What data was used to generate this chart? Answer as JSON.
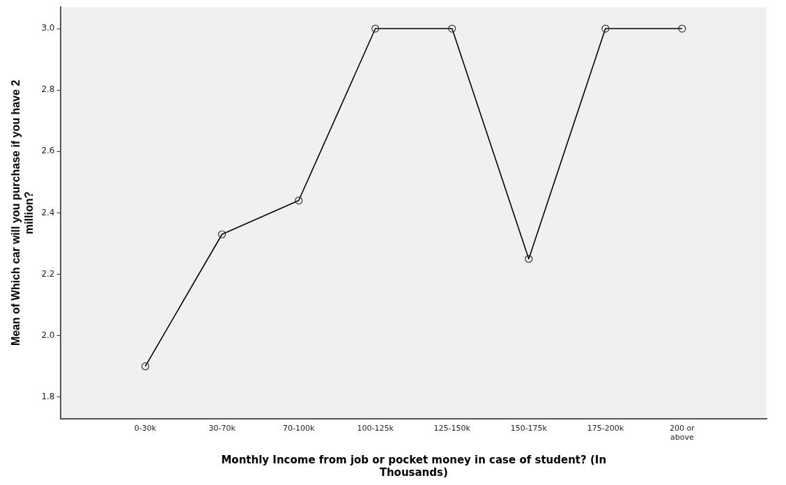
{
  "chart_data": {
    "type": "line",
    "xlabel": "Monthly Income from job or pocket money in case of student? (In Thousands)",
    "ylabel": "Mean of Which car will you purchase if you have 2 million?",
    "categories": [
      "0-30k",
      "30-70k",
      "70-100k",
      "100-125k",
      "125-150k",
      "150-175k",
      "175-200k",
      "200 or above"
    ],
    "series": [
      {
        "color": "#000000",
        "values": [
          1.9,
          2.33,
          2.44,
          3.0,
          3.0,
          2.25,
          3.0,
          3.0
        ]
      }
    ],
    "ylim": [
      1.73,
      3.07
    ],
    "yticks": [
      {
        "value": 1.8,
        "label": "1.8"
      },
      {
        "value": 2,
        "label": "2.0"
      },
      {
        "value": 2.2,
        "label": "2.2"
      },
      {
        "value": 2.4,
        "label": "2.4"
      },
      {
        "value": 2.6,
        "label": "2.6"
      },
      {
        "value": 2.8,
        "label": "2.8"
      },
      {
        "value": 3,
        "label": "3.0"
      }
    ],
    "grid": false,
    "legend": false,
    "marker": "circle",
    "line_style": "solid"
  }
}
